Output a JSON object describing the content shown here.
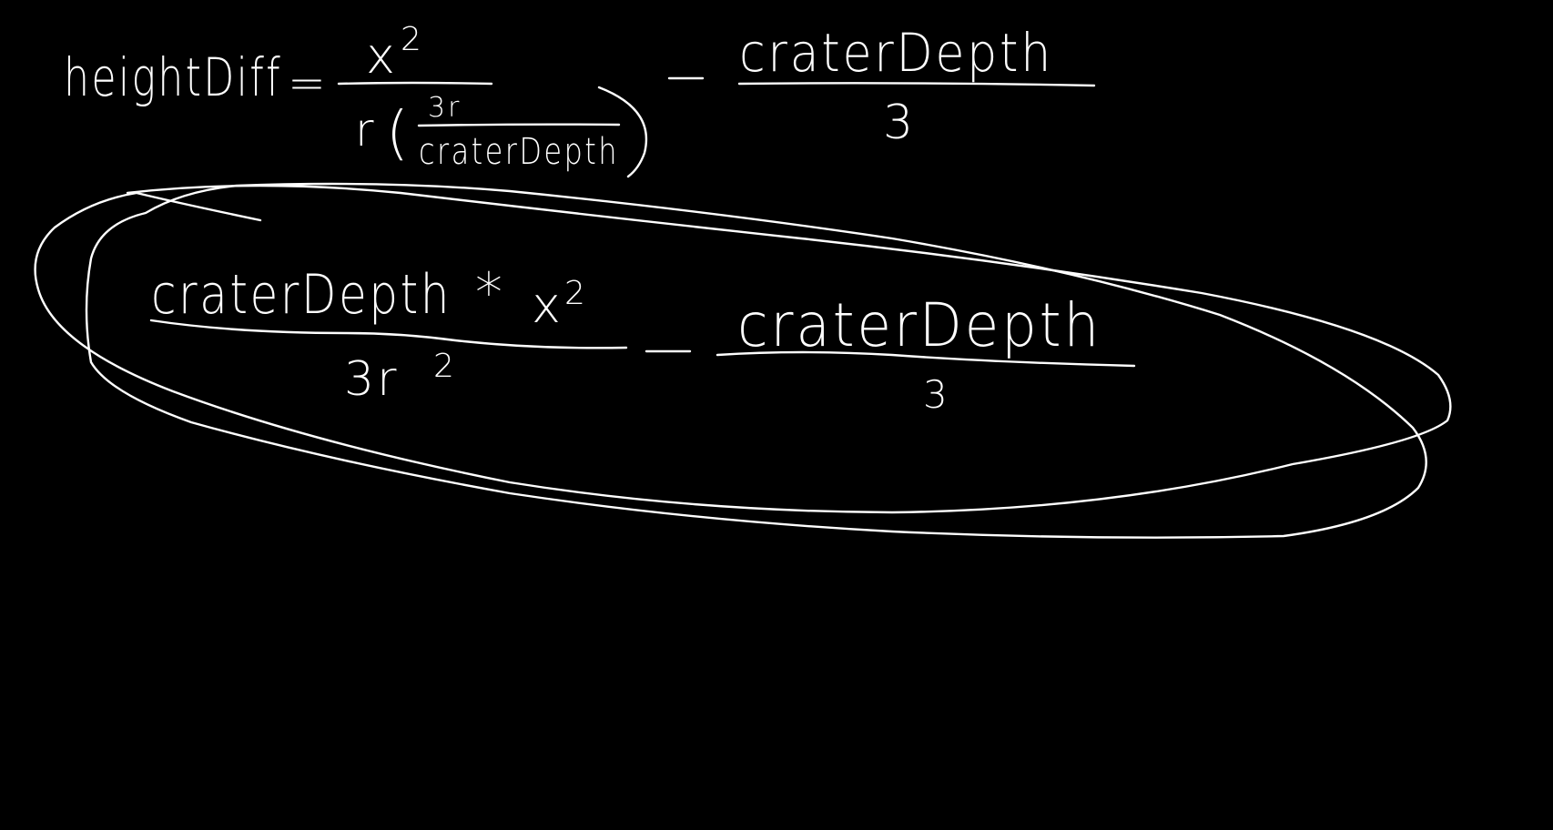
{
  "canvas": {
    "background_color": "#000000",
    "ink_color": "#ffffff"
  },
  "equation_1": {
    "lhs": "heightDiff",
    "equals": "=",
    "term1_numerator": "x",
    "term1_numerator_exponent": "2",
    "term1_denominator_r": "r",
    "term1_open_paren": "(",
    "term1_inner_numerator": "3r",
    "term1_inner_denominator": "craterDepth",
    "term1_close_paren": ")",
    "minus": "–",
    "term2_numerator": "craterDepth",
    "term2_denominator": "3"
  },
  "equation_2": {
    "term1_numerator": "craterDepth",
    "times": "*",
    "term1_x": "x",
    "term1_x_exponent": "2",
    "term1_denominator": "3r",
    "term1_denominator_exponent": "2",
    "minus": "–",
    "term2_numerator": "craterDepth",
    "term2_denominator": "3"
  }
}
